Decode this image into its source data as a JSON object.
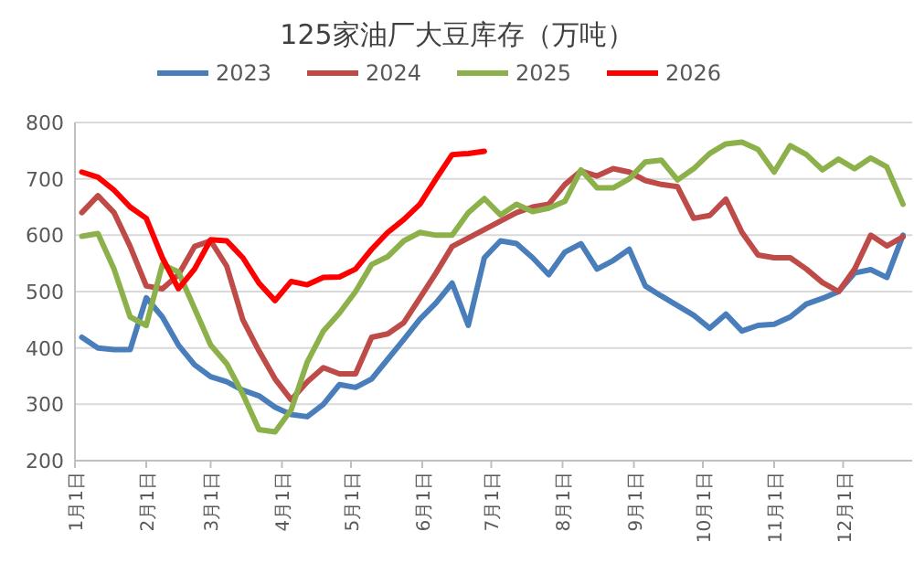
{
  "chart_data": {
    "type": "line",
    "title": "125家油厂大豆库存（万吨）",
    "x": [
      "--01-04",
      "--01-11",
      "--01-18",
      "--01-25",
      "--02-01",
      "--02-08",
      "--02-15",
      "--02-22",
      "--03-01",
      "--03-08",
      "--03-15",
      "--03-22",
      "--03-29",
      "--04-05",
      "--04-12",
      "--04-19",
      "--04-26",
      "--05-03",
      "--05-10",
      "--05-17",
      "--05-24",
      "--05-31",
      "--06-07",
      "--06-14",
      "--06-21",
      "--06-28",
      "--07-05",
      "--07-12",
      "--07-19",
      "--07-26",
      "--08-02",
      "--08-09",
      "--08-16",
      "--08-23",
      "--08-30",
      "--09-06",
      "--09-13",
      "--09-20",
      "--09-27",
      "--10-04",
      "--10-11",
      "--10-18",
      "--10-25",
      "--11-01",
      "--11-08",
      "--11-15",
      "--11-22",
      "--11-29",
      "--12-06",
      "--12-13",
      "--12-20",
      "--12-27"
    ],
    "series": [
      {
        "name": "2023",
        "color": "#4a7ebb",
        "values": [
          419,
          400,
          397,
          397,
          489,
          455,
          405,
          370,
          349,
          340,
          325,
          315,
          295,
          282,
          278,
          300,
          335,
          330,
          345,
          380,
          415,
          451,
          480,
          515,
          440,
          560,
          590,
          585,
          560,
          530,
          570,
          585,
          540,
          555,
          575,
          510,
          492,
          475,
          458,
          435,
          460,
          430,
          440,
          442,
          455,
          478,
          488,
          500,
          533,
          539,
          525,
          600
        ]
      },
      {
        "name": "2024",
        "color": "#be4b48",
        "values": [
          640,
          670,
          640,
          580,
          510,
          505,
          530,
          580,
          590,
          545,
          450,
          395,
          345,
          308,
          340,
          365,
          354,
          354,
          419,
          425,
          445,
          489,
          533,
          580,
          595,
          610,
          625,
          640,
          650,
          655,
          690,
          714,
          705,
          718,
          712,
          697,
          690,
          686,
          630,
          635,
          664,
          605,
          565,
          560,
          560,
          540,
          516,
          500,
          540,
          600,
          581,
          597
        ]
      },
      {
        "name": "2025",
        "color": "#8cb14a",
        "values": [
          598,
          603,
          540,
          455,
          440,
          548,
          535,
          470,
          405,
          372,
          318,
          255,
          251,
          290,
          375,
          430,
          462,
          500,
          548,
          562,
          590,
          605,
          600,
          600,
          640,
          665,
          636,
          655,
          642,
          648,
          660,
          716,
          684,
          684,
          700,
          730,
          733,
          698,
          718,
          745,
          762,
          765,
          752,
          712,
          759,
          743,
          716,
          735,
          718,
          737,
          721,
          655
        ]
      },
      {
        "name": "2026",
        "color": "#ff0000",
        "values": [
          712,
          703,
          680,
          650,
          630,
          560,
          505,
          540,
          592,
          590,
          560,
          515,
          484,
          518,
          512,
          525,
          526,
          540,
          575,
          605,
          628,
          655,
          700,
          743,
          745,
          749,
          null,
          null,
          null,
          null,
          null,
          null,
          null,
          null,
          null,
          null,
          null,
          null,
          null,
          null,
          null,
          null,
          null,
          null,
          null,
          null,
          null,
          null,
          null,
          null,
          null,
          null
        ]
      }
    ],
    "xlim": [
      "--01-01",
      "--12-31"
    ],
    "xticks": [
      {
        "value": "--01-01",
        "label": "1月1日"
      },
      {
        "value": "--02-01",
        "label": "2月1日"
      },
      {
        "value": "--03-01",
        "label": "3月1日"
      },
      {
        "value": "--04-01",
        "label": "4月1日"
      },
      {
        "value": "--05-01",
        "label": "5月1日"
      },
      {
        "value": "--06-01",
        "label": "6月1日"
      },
      {
        "value": "--07-01",
        "label": "7月1日"
      },
      {
        "value": "--08-01",
        "label": "8月1日"
      },
      {
        "value": "--09-01",
        "label": "9月1日"
      },
      {
        "value": "--10-01",
        "label": "10月1日"
      },
      {
        "value": "--11-01",
        "label": "11月1日"
      },
      {
        "value": "--12-01",
        "label": "12月1日"
      }
    ],
    "ylim": [
      200,
      800
    ],
    "yticks": [
      200,
      300,
      400,
      500,
      600,
      700,
      800
    ],
    "grid": "y",
    "legend": "top"
  }
}
